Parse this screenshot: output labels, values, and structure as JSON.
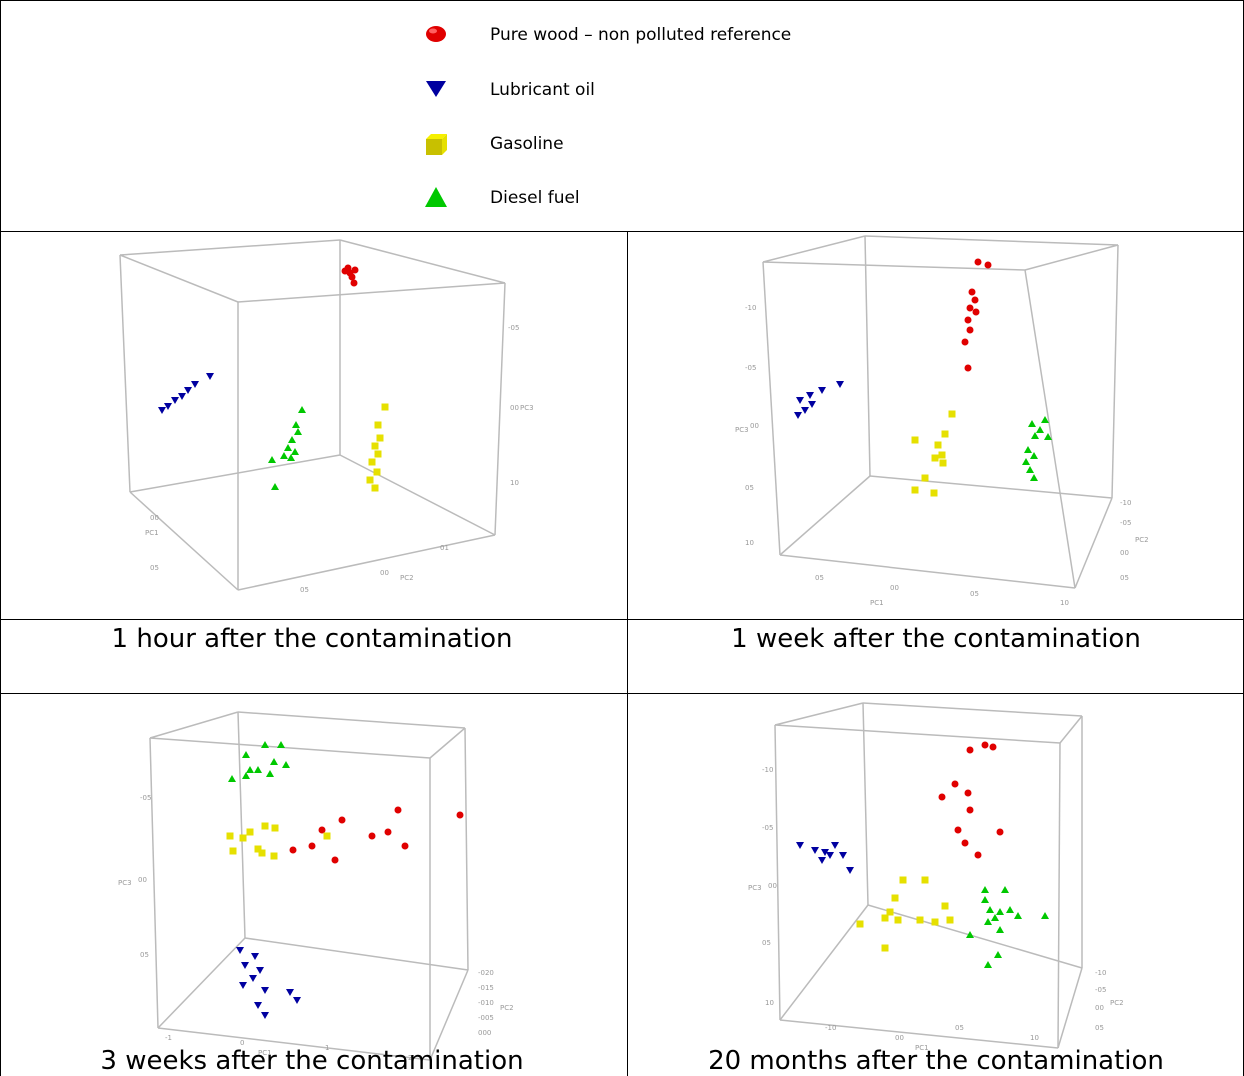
{
  "legend": [
    {
      "label": "Pure wood – non polluted reference",
      "color": "#e00000",
      "marker": "circle"
    },
    {
      "label": "Lubricant oil",
      "color": "#0000a0",
      "marker": "triangle-down"
    },
    {
      "label": "Gasoline",
      "color": "#e6e000",
      "marker": "cube"
    },
    {
      "label": "Diesel fuel",
      "color": "#00c800",
      "marker": "triangle-up"
    }
  ],
  "captions": [
    "1 hour after the contamination",
    "1 week after the contamination",
    "3 weeks after the contamination",
    "20 months after the contamination"
  ],
  "chart_data": [
    {
      "type": "scatter",
      "title": "1 hour after the contamination",
      "series": [
        {
          "name": "Pure wood – non polluted reference",
          "points": [
            [
              355,
              270
            ],
            [
              350,
              273
            ],
            [
              345,
              271
            ],
            [
              352,
              277
            ],
            [
              348,
              268
            ],
            [
              354,
              283
            ]
          ]
        },
        {
          "name": "Lubricant oil",
          "points": [
            [
              210,
              376
            ],
            [
              195,
              384
            ],
            [
              188,
              390
            ],
            [
              182,
              396
            ],
            [
              175,
              400
            ],
            [
              168,
              406
            ],
            [
              162,
              410
            ]
          ]
        },
        {
          "name": "Gasoline",
          "points": [
            [
              385,
              407
            ],
            [
              378,
              425
            ],
            [
              380,
              438
            ],
            [
              375,
              446
            ],
            [
              378,
              454
            ],
            [
              372,
              462
            ],
            [
              377,
              472
            ],
            [
              370,
              480
            ],
            [
              375,
              488
            ]
          ]
        },
        {
          "name": "Diesel fuel",
          "points": [
            [
              302,
              410
            ],
            [
              296,
              425
            ],
            [
              298,
              432
            ],
            [
              292,
              440
            ],
            [
              288,
              448
            ],
            [
              295,
              452
            ],
            [
              284,
              456
            ],
            [
              291,
              458
            ],
            [
              272,
              460
            ],
            [
              275,
              487
            ]
          ]
        }
      ],
      "axis_labels": [
        "PC1",
        "PC2",
        "PC3"
      ]
    },
    {
      "type": "scatter",
      "title": "1 week after the contamination",
      "series": [
        {
          "name": "Pure wood – non polluted reference",
          "points": [
            [
              988,
              265
            ],
            [
              978,
              262
            ],
            [
              972,
              292
            ],
            [
              975,
              300
            ],
            [
              970,
              308
            ],
            [
              976,
              312
            ],
            [
              968,
              320
            ],
            [
              970,
              330
            ],
            [
              965,
              342
            ],
            [
              968,
              368
            ]
          ]
        },
        {
          "name": "Lubricant oil",
          "points": [
            [
              840,
              384
            ],
            [
              822,
              390
            ],
            [
              810,
              395
            ],
            [
              800,
              400
            ],
            [
              812,
              404
            ],
            [
              805,
              410
            ],
            [
              798,
              415
            ]
          ]
        },
        {
          "name": "Gasoline",
          "points": [
            [
              952,
              414
            ],
            [
              945,
              434
            ],
            [
              915,
              440
            ],
            [
              938,
              445
            ],
            [
              942,
              455
            ],
            [
              935,
              458
            ],
            [
              943,
              463
            ],
            [
              925,
              478
            ],
            [
              915,
              490
            ],
            [
              934,
              493
            ]
          ]
        },
        {
          "name": "Diesel fuel",
          "points": [
            [
              1045,
              420
            ],
            [
              1032,
              424
            ],
            [
              1040,
              430
            ],
            [
              1035,
              436
            ],
            [
              1048,
              437
            ],
            [
              1028,
              450
            ],
            [
              1034,
              456
            ],
            [
              1026,
              462
            ],
            [
              1030,
              470
            ],
            [
              1034,
              478
            ]
          ]
        }
      ],
      "axis_labels": [
        "PC1",
        "PC2",
        "PC3"
      ]
    },
    {
      "type": "scatter",
      "title": "3 weeks after the contamination",
      "series": [
        {
          "name": "Pure wood – non polluted reference",
          "points": [
            [
              460,
              815
            ],
            [
              398,
              810
            ],
            [
              342,
              820
            ],
            [
              322,
              830
            ],
            [
              388,
              832
            ],
            [
              372,
              836
            ],
            [
              312,
              846
            ],
            [
              293,
              850
            ],
            [
              405,
              846
            ],
            [
              335,
              860
            ]
          ]
        },
        {
          "name": "Lubricant oil",
          "points": [
            [
              240,
              950
            ],
            [
              255,
              956
            ],
            [
              245,
              965
            ],
            [
              260,
              970
            ],
            [
              253,
              978
            ],
            [
              243,
              985
            ],
            [
              265,
              990
            ],
            [
              290,
              992
            ],
            [
              297,
              1000
            ],
            [
              258,
              1005
            ],
            [
              265,
              1015
            ]
          ]
        },
        {
          "name": "Gasoline",
          "points": [
            [
              265,
              826
            ],
            [
              275,
              828
            ],
            [
              250,
              832
            ],
            [
              230,
              836
            ],
            [
              243,
              838
            ],
            [
              258,
              849
            ],
            [
              233,
              851
            ],
            [
              262,
              853
            ],
            [
              274,
              856
            ],
            [
              327,
              836
            ]
          ]
        },
        {
          "name": "Diesel fuel",
          "points": [
            [
              265,
              745
            ],
            [
              281,
              745
            ],
            [
              246,
              755
            ],
            [
              274,
              762
            ],
            [
              286,
              765
            ],
            [
              250,
              770
            ],
            [
              258,
              770
            ],
            [
              270,
              774
            ],
            [
              246,
              776
            ],
            [
              232,
              779
            ]
          ]
        }
      ],
      "axis_labels": [
        "PC1",
        "PC2",
        "PC3"
      ]
    },
    {
      "type": "scatter",
      "title": "20 months after the contamination",
      "series": [
        {
          "name": "Pure wood – non polluted reference",
          "points": [
            [
              985,
              745
            ],
            [
              993,
              747
            ],
            [
              970,
              750
            ],
            [
              955,
              784
            ],
            [
              968,
              793
            ],
            [
              942,
              797
            ],
            [
              970,
              810
            ],
            [
              958,
              830
            ],
            [
              1000,
              832
            ],
            [
              965,
              843
            ],
            [
              978,
              855
            ]
          ]
        },
        {
          "name": "Lubricant oil",
          "points": [
            [
              815,
              850
            ],
            [
              825,
              852
            ],
            [
              800,
              845
            ],
            [
              830,
              855
            ],
            [
              822,
              860
            ],
            [
              835,
              845
            ],
            [
              850,
              870
            ],
            [
              843,
              855
            ]
          ]
        },
        {
          "name": "Gasoline",
          "points": [
            [
              903,
              880
            ],
            [
              925,
              880
            ],
            [
              895,
              898
            ],
            [
              945,
              906
            ],
            [
              890,
              912
            ],
            [
              885,
              918
            ],
            [
              898,
              920
            ],
            [
              920,
              920
            ],
            [
              950,
              920
            ],
            [
              935,
              922
            ],
            [
              860,
              924
            ],
            [
              885,
              948
            ]
          ]
        },
        {
          "name": "Diesel fuel",
          "points": [
            [
              985,
              890
            ],
            [
              1005,
              890
            ],
            [
              985,
              900
            ],
            [
              990,
              910
            ],
            [
              1000,
              912
            ],
            [
              1010,
              910
            ],
            [
              1018,
              916
            ],
            [
              995,
              918
            ],
            [
              1045,
              916
            ],
            [
              988,
              922
            ],
            [
              1000,
              930
            ],
            [
              970,
              935
            ],
            [
              998,
              955
            ],
            [
              988,
              965
            ]
          ]
        }
      ],
      "axis_labels": [
        "PC1",
        "PC2",
        "PC3"
      ]
    }
  ]
}
